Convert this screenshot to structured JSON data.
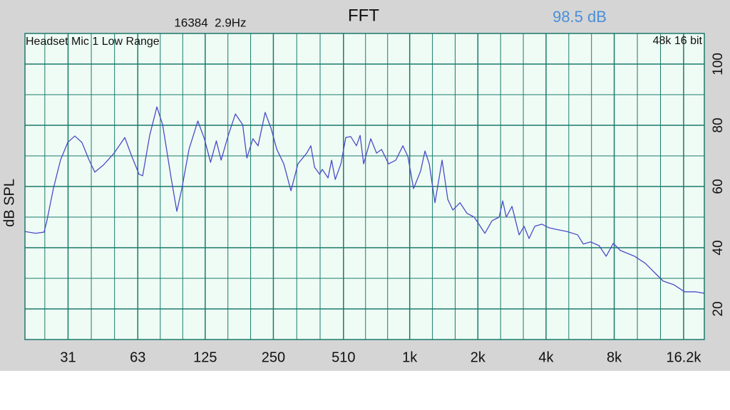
{
  "chart_data": {
    "type": "line",
    "title": "FFT",
    "subtitle": "16384  2.9Hz",
    "level": "98.5 dB",
    "source_label": "Headset Mic 1 Low Range",
    "format_label": "48k 16 bit",
    "y_label": "dB SPL",
    "log_x": true,
    "grid": true,
    "color": "#4b4bc8",
    "xlim": [
      20,
      20000
    ],
    "ylim": [
      10,
      110
    ],
    "xticks": [
      31,
      63,
      125,
      250,
      510,
      {
        "value": 1000,
        "label": "1k"
      },
      {
        "value": 2000,
        "label": "2k"
      },
      {
        "value": 4000,
        "label": "4k"
      },
      {
        "value": 8000,
        "label": "8k"
      },
      {
        "value": 16200,
        "label": "16.2k"
      }
    ],
    "yticks": [
      20,
      40,
      60,
      80,
      100
    ],
    "x": [
      20,
      22.3,
      24.3,
      25,
      26.7,
      28.7,
      30.9,
      33.2,
      35.7,
      38.4,
      40.7,
      44.4,
      49.5,
      55.2,
      59.3,
      63.8,
      66.2,
      71.1,
      76.5,
      81.1,
      88.4,
      93.7,
      98.6,
      106,
      116,
      124,
      132,
      140,
      147,
      158,
      170,
      183,
      191,
      203,
      214,
      230,
      244,
      259,
      278,
      299,
      321,
      351,
      366,
      380,
      400,
      411,
      436,
      452,
      469,
      497,
      522,
      549,
      582,
      604,
      626,
      673,
      714,
      751,
      807,
      868,
      933,
      982,
      1040,
      1118,
      1168,
      1220,
      1293,
      1390,
      1473,
      1550,
      1667,
      1792,
      1926,
      2148,
      2309,
      2483,
      2575,
      2670,
      2830,
      3042,
      3200,
      3366,
      3568,
      3836,
      4124,
      4436,
      4946,
      5514,
      5842,
      6281,
      6855,
      7369,
      7924,
      8518,
      9844,
      10974,
      12236,
      13158,
      14672,
      16360,
      18246,
      20000
    ],
    "values": [
      45.3,
      44.7,
      45.1,
      48.8,
      59.3,
      68.6,
      74.4,
      76.5,
      74.4,
      68.6,
      64.7,
      67.0,
      70.9,
      76.0,
      69.8,
      64.0,
      63.5,
      76.7,
      86.0,
      80.2,
      62.8,
      51.9,
      59.3,
      72.1,
      81.4,
      75.6,
      67.9,
      74.9,
      68.6,
      76.7,
      83.7,
      80.2,
      69.3,
      75.6,
      73.3,
      84.2,
      79.1,
      72.1,
      67.4,
      58.6,
      67.4,
      70.9,
      73.3,
      66.3,
      64.0,
      65.6,
      62.8,
      68.6,
      62.3,
      67.4,
      76.0,
      76.3,
      73.3,
      76.7,
      67.4,
      75.6,
      70.9,
      72.1,
      67.4,
      68.6,
      73.3,
      69.8,
      59.3,
      65.1,
      71.6,
      67.4,
      54.7,
      68.6,
      55.8,
      52.3,
      54.7,
      51.2,
      50.0,
      44.7,
      48.8,
      50.0,
      55.3,
      50.0,
      53.5,
      44.2,
      47.0,
      43.0,
      47.0,
      47.7,
      46.5,
      46.0,
      45.3,
      44.2,
      41.2,
      41.9,
      40.7,
      37.2,
      41.4,
      39.1,
      37.2,
      34.9,
      31.4,
      29.1,
      27.9,
      25.6,
      25.6,
      25.1
    ]
  }
}
